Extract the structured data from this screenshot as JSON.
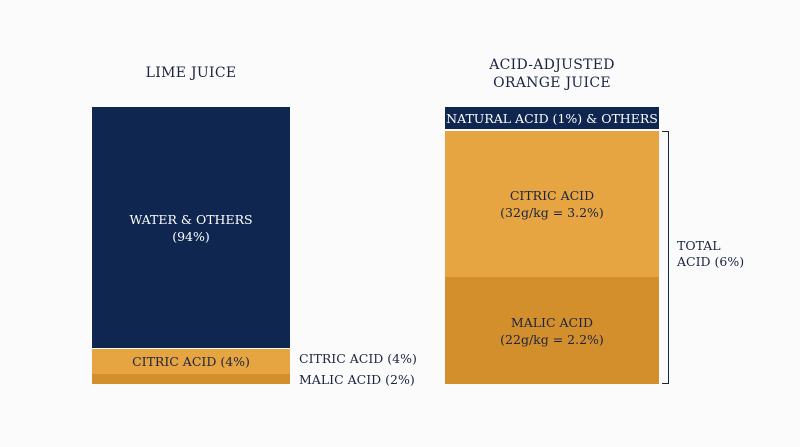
{
  "lime": {
    "title": "LIME JUICE",
    "water_label": "WATER & OTHERS\n(94%)",
    "citric_bar_label": "CITRIC ACID (4%)",
    "citric_side_label": "CITRIC ACID (4%)",
    "malic_side_label": "MALIC ACID (2%)"
  },
  "orange": {
    "title": "ACID-ADJUSTED\nORANGE JUICE",
    "natural_label": "NATURAL ACID (1%) & OTHERS",
    "citric_label": "CITRIC ACID\n(32g/kg = 3.2%)",
    "malic_label": "MALIC ACID\n(22g/kg = 2.2%)",
    "total_label": "TOTAL\nACID (6%)"
  },
  "colors": {
    "navy": "#0e2650",
    "amber": "#e6a540",
    "amber_dark": "#d48f2d",
    "background": "#fbfbfb"
  }
}
